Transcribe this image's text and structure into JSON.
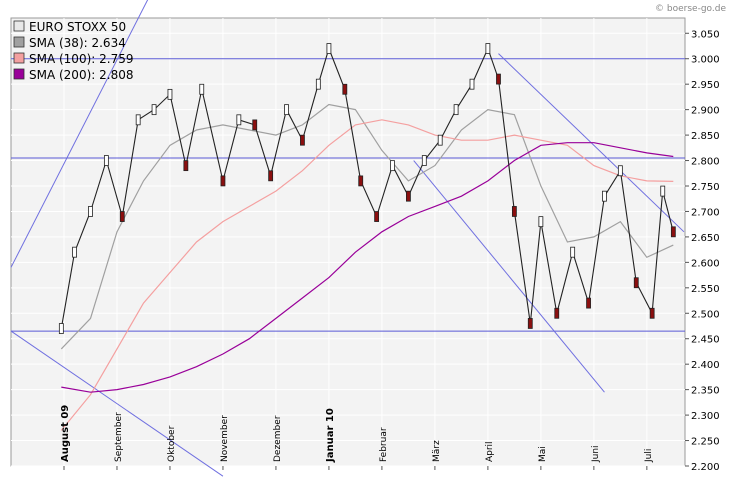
{
  "credit": "© boerse-go.de",
  "chart_data": {
    "type": "line",
    "title": "",
    "xlabel": "",
    "ylabel": "",
    "grid": true,
    "legend_placement": "top-left",
    "ylim": [
      2200,
      3080
    ],
    "y_ticks": [
      2200,
      2250,
      2300,
      2350,
      2400,
      2450,
      2500,
      2550,
      2600,
      2650,
      2700,
      2750,
      2800,
      2850,
      2900,
      2950,
      3000,
      3050
    ],
    "y_tick_labels": [
      "2.200",
      "2.250",
      "2.300",
      "2.350",
      "2.400",
      "2.450",
      "2.500",
      "2.550",
      "2.600",
      "2.650",
      "2.700",
      "2.750",
      "2.800",
      "2.850",
      "2.900",
      "2.950",
      "3.000",
      "3.050"
    ],
    "x_months": [
      "Jul 2009",
      "Aug 2009",
      "Sep 2009",
      "Oct 2009",
      "Nov 2009",
      "Dec 2009",
      "Jan 2010",
      "Feb 2010",
      "Mar 2010",
      "Apr 2010",
      "May 2010",
      "Jun 2010",
      "Jul 2010"
    ],
    "x_ticks": [
      {
        "label": "August 09",
        "month": 1,
        "major": true
      },
      {
        "label": "September",
        "month": 2,
        "major": false
      },
      {
        "label": "Oktober",
        "month": 3,
        "major": false
      },
      {
        "label": "November",
        "month": 4,
        "major": false
      },
      {
        "label": "Dezember",
        "month": 5,
        "major": false
      },
      {
        "label": "Januar 10",
        "month": 6,
        "major": true
      },
      {
        "label": "Februar",
        "month": 7,
        "major": false
      },
      {
        "label": "März",
        "month": 8,
        "major": false
      },
      {
        "label": "April",
        "month": 9,
        "major": false
      },
      {
        "label": "Mai",
        "month": 10,
        "major": false
      },
      {
        "label": "Juni",
        "month": 11,
        "major": false
      },
      {
        "label": "Juli",
        "month": 12,
        "major": false
      }
    ],
    "legend": [
      {
        "label": "EURO STOXX 50",
        "color": "#e8e8e8"
      },
      {
        "label": "SMA (38): 2.634",
        "color": "#a0a0a0"
      },
      {
        "label": "SMA (100): 2.759",
        "color": "#f4a0a0"
      },
      {
        "label": "SMA (200): 2.808",
        "color": "#990099"
      }
    ],
    "price_series": {
      "name": "EURO STOXX 50",
      "x": [
        0.95,
        1.2,
        1.5,
        1.8,
        2.1,
        2.4,
        2.7,
        3.0,
        3.3,
        3.6,
        4.0,
        4.3,
        4.6,
        4.9,
        5.2,
        5.5,
        5.8,
        6.0,
        6.3,
        6.6,
        6.9,
        7.2,
        7.5,
        7.8,
        8.1,
        8.4,
        8.7,
        9.0,
        9.2,
        9.5,
        9.8,
        10.0,
        10.3,
        10.6,
        10.9,
        11.2,
        11.5,
        11.8,
        12.1,
        12.3,
        12.5
      ],
      "values": [
        2470,
        2620,
        2700,
        2800,
        2690,
        2880,
        2900,
        2930,
        2790,
        2940,
        2760,
        2880,
        2870,
        2770,
        2900,
        2840,
        2950,
        3020,
        2940,
        2760,
        2690,
        2790,
        2730,
        2800,
        2840,
        2900,
        2950,
        3020,
        2960,
        2700,
        2480,
        2680,
        2500,
        2620,
        2520,
        2730,
        2780,
        2560,
        2500,
        2740,
        2660
      ]
    },
    "sma_series": [
      {
        "name": "SMA (38)",
        "color": "#a0a0a0",
        "x": [
          0.95,
          1.5,
          2.0,
          2.5,
          3.0,
          3.5,
          4.0,
          4.5,
          5.0,
          5.5,
          6.0,
          6.5,
          7.0,
          7.5,
          8.0,
          8.5,
          9.0,
          9.5,
          10.0,
          10.5,
          11.0,
          11.5,
          12.0,
          12.5
        ],
        "values": [
          2430,
          2490,
          2660,
          2760,
          2830,
          2860,
          2870,
          2860,
          2850,
          2870,
          2910,
          2900,
          2820,
          2760,
          2790,
          2860,
          2900,
          2890,
          2750,
          2640,
          2650,
          2680,
          2610,
          2634
        ]
      },
      {
        "name": "SMA (100)",
        "color": "#f4a0a0",
        "x": [
          0.95,
          1.5,
          2.0,
          2.5,
          3.0,
          3.5,
          4.0,
          4.5,
          5.0,
          5.5,
          6.0,
          6.5,
          7.0,
          7.5,
          8.0,
          8.5,
          9.0,
          9.5,
          10.0,
          10.5,
          11.0,
          11.5,
          12.0,
          12.5
        ],
        "values": [
          2270,
          2340,
          2430,
          2520,
          2580,
          2640,
          2680,
          2710,
          2740,
          2780,
          2830,
          2870,
          2880,
          2870,
          2850,
          2840,
          2840,
          2850,
          2840,
          2830,
          2790,
          2770,
          2760,
          2759
        ]
      },
      {
        "name": "SMA (200)",
        "color": "#990099",
        "x": [
          0.95,
          1.5,
          2.0,
          2.5,
          3.0,
          3.5,
          4.0,
          4.5,
          5.0,
          5.5,
          6.0,
          6.5,
          7.0,
          7.5,
          8.0,
          8.5,
          9.0,
          9.5,
          10.0,
          10.5,
          11.0,
          11.5,
          12.0,
          12.5
        ],
        "values": [
          2355,
          2345,
          2350,
          2360,
          2375,
          2395,
          2420,
          2450,
          2490,
          2530,
          2570,
          2620,
          2660,
          2690,
          2710,
          2730,
          2760,
          2800,
          2830,
          2835,
          2835,
          2825,
          2815,
          2808
        ]
      }
    ],
    "horizontal_lines": [
      3000,
      2805,
      2465
    ],
    "trend_lines": [
      {
        "x": [
          0.0,
          2.6
        ],
        "values": [
          2590,
          3120
        ]
      },
      {
        "x": [
          9.2,
          12.7
        ],
        "values": [
          3010,
          2660
        ]
      },
      {
        "x": [
          7.6,
          11.2
        ],
        "values": [
          2800,
          2345
        ]
      },
      {
        "x": [
          0.0,
          4.0
        ],
        "values": [
          2465,
          2180
        ]
      }
    ]
  }
}
